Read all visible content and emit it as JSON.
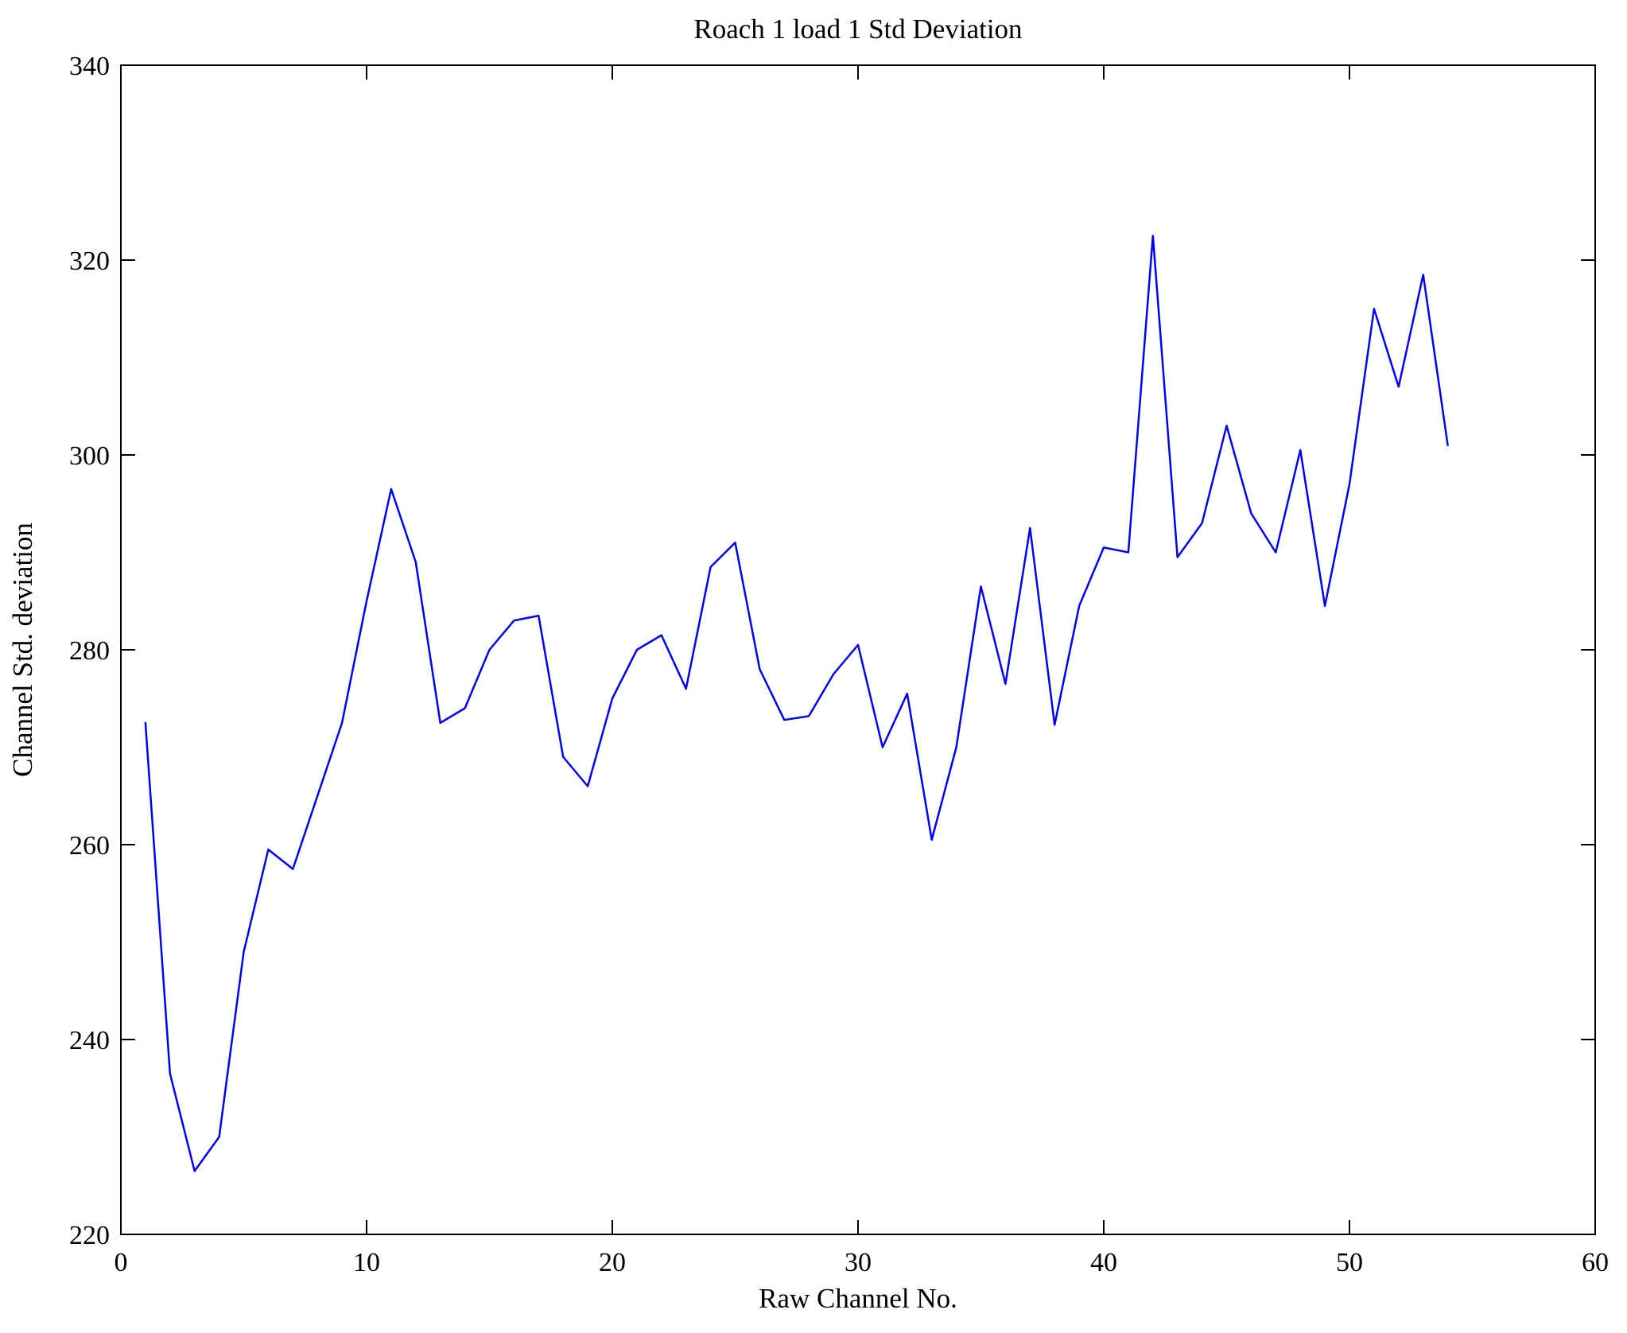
{
  "figure": {
    "background": "#ffffff",
    "axis_color": "#000000"
  },
  "chart_data": {
    "type": "line",
    "title": "Roach 1 load 1 Std Deviation",
    "xlabel": "Raw Channel No.",
    "ylabel": "Channel Std. deviation",
    "xlim": [
      0,
      60
    ],
    "ylim": [
      220,
      340
    ],
    "xticks": [
      0,
      10,
      20,
      30,
      40,
      50,
      60
    ],
    "yticks": [
      220,
      240,
      260,
      280,
      300,
      320,
      340
    ],
    "grid": false,
    "legend": null,
    "line_color": "#0000ff",
    "series_name": "Channel Std. deviation per raw channel",
    "x": [
      1,
      2,
      3,
      4,
      5,
      6,
      7,
      8,
      9,
      10,
      11,
      12,
      13,
      14,
      15,
      16,
      17,
      18,
      19,
      20,
      21,
      22,
      23,
      24,
      25,
      26,
      27,
      28,
      29,
      30,
      31,
      32,
      33,
      34,
      35,
      36,
      37,
      38,
      39,
      40,
      41,
      42,
      43,
      44,
      45,
      46,
      47,
      48,
      49,
      50,
      51,
      52,
      53,
      54
    ],
    "values": [
      272.5,
      236.5,
      226.5,
      230,
      249,
      259.5,
      257.5,
      265,
      272.5,
      285,
      296.5,
      289,
      272.5,
      274,
      280,
      283,
      283.5,
      269,
      266,
      275,
      280,
      281.5,
      276,
      288.5,
      291,
      278,
      272.8,
      273.2,
      277.5,
      280.5,
      270,
      275.5,
      260.5,
      270,
      286.5,
      276.5,
      292.5,
      272.3,
      284.5,
      290.5,
      290,
      322.5,
      289.5,
      293,
      303,
      294,
      290,
      300.5,
      284.5,
      297,
      315,
      307,
      318.5,
      301
    ]
  }
}
